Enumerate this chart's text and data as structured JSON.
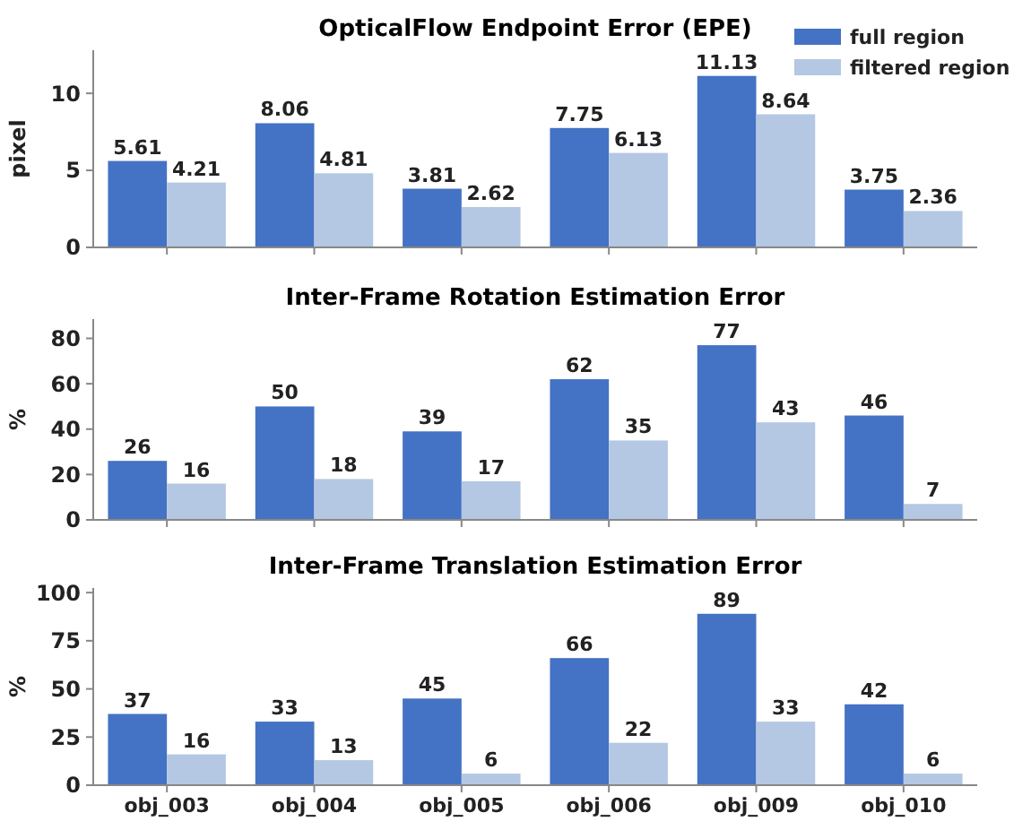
{
  "chart_data": [
    {
      "type": "bar",
      "title": "OpticalFlow Endpoint Error (EPE)",
      "ylabel": "pixel",
      "categories": [
        null,
        null,
        null,
        null,
        null,
        null
      ],
      "series": [
        {
          "name": "full region",
          "color": "#4472c4",
          "values": [
            5.61,
            8.06,
            3.81,
            7.75,
            11.13,
            3.75
          ]
        },
        {
          "name": "filtered region",
          "color": "#b4c7e3",
          "values": [
            4.21,
            4.81,
            2.62,
            6.13,
            8.64,
            2.36
          ]
        }
      ],
      "ylim": [
        0,
        12.8
      ],
      "yticks": [
        0,
        5,
        10
      ],
      "data_labels": true,
      "legend": "top right",
      "tick_labels": "y"
    },
    {
      "type": "bar",
      "title": "Inter-Frame Rotation Estimation Error",
      "ylabel": "%",
      "categories": [
        null,
        null,
        null,
        null,
        null,
        null
      ],
      "series": [
        {
          "color": "#4472c4",
          "values": [
            26,
            50,
            39,
            62,
            77,
            46
          ]
        },
        {
          "color": "#b4c7e3",
          "values": [
            16,
            18,
            17,
            35,
            43,
            7
          ]
        }
      ],
      "ylim": [
        0,
        88.5
      ],
      "yticks": [
        0,
        20,
        40,
        60,
        80
      ],
      "data_labels": true,
      "tick_labels": "y"
    },
    {
      "type": "bar",
      "title": "Inter-Frame Translation Estimation Error",
      "ylabel": "%",
      "categories": [
        "obj_003",
        "obj_004",
        "obj_005",
        "obj_006",
        "obj_009",
        "obj_010"
      ],
      "series": [
        {
          "color": "#4472c4",
          "values": [
            37,
            33,
            45,
            66,
            89,
            42
          ]
        },
        {
          "color": "#b4c7e3",
          "values": [
            16,
            13,
            6,
            22,
            33,
            6
          ]
        }
      ],
      "ylim": [
        0,
        102.4
      ],
      "yticks": [
        0,
        25,
        50,
        75,
        100
      ],
      "data_labels": true
    }
  ]
}
